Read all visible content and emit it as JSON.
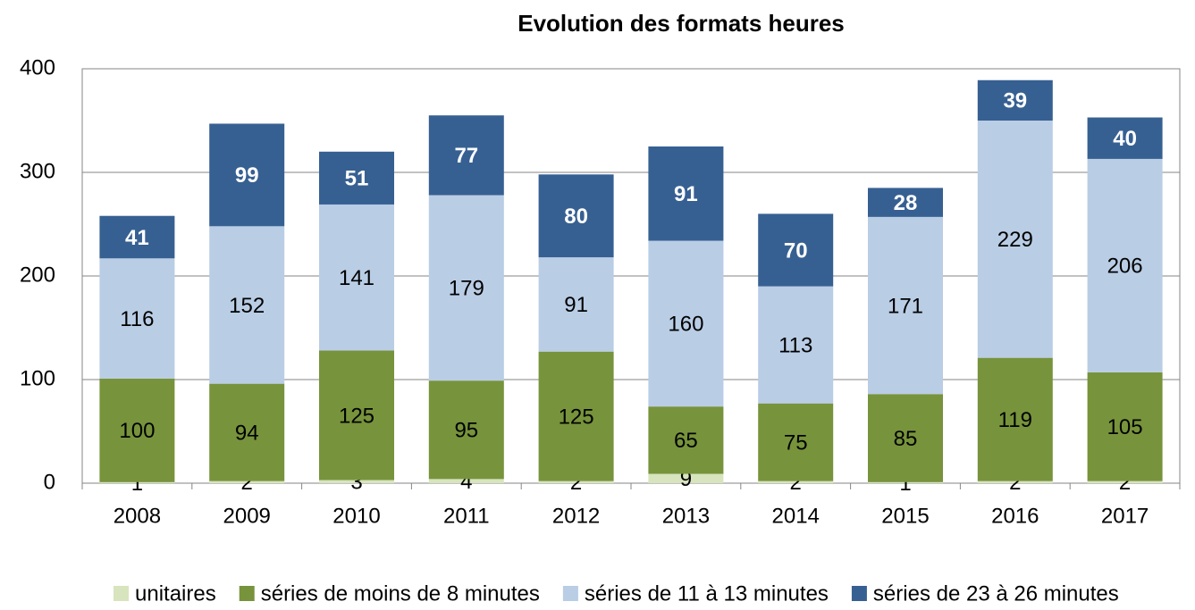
{
  "chart_data": {
    "type": "stacked_bar",
    "title": "Evolution des formats heures",
    "categories": [
      "2008",
      "2009",
      "2010",
      "2011",
      "2012",
      "2013",
      "2014",
      "2015",
      "2016",
      "2017"
    ],
    "series": [
      {
        "name": "unitaires",
        "color": "#d7e4bd",
        "values": [
          1,
          2,
          3,
          4,
          2,
          9,
          2,
          1,
          2,
          2
        ]
      },
      {
        "name": "séries de moins de 8 minutes",
        "color": "#77933c",
        "values": [
          100,
          94,
          125,
          95,
          125,
          65,
          75,
          85,
          119,
          105
        ]
      },
      {
        "name": "séries de 11 à 13 minutes",
        "color": "#b9cde5",
        "values": [
          116,
          152,
          141,
          179,
          91,
          160,
          113,
          171,
          229,
          206
        ]
      },
      {
        "name": "séries de 23 à 26 minutes",
        "color": "#376092",
        "values": [
          41,
          99,
          51,
          77,
          80,
          91,
          70,
          28,
          39,
          40
        ]
      }
    ],
    "ylim": [
      0,
      400
    ],
    "yticks": [
      0,
      100,
      200,
      300,
      400
    ],
    "grid": true,
    "legend": "bottom"
  }
}
